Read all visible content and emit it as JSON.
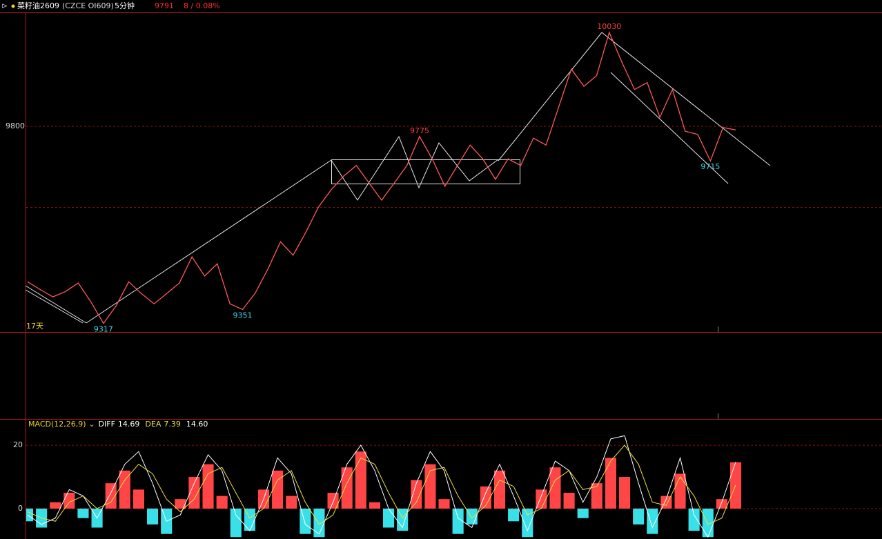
{
  "header": {
    "name": "菜籽油2609",
    "code": "(CZCE OI609)",
    "period": "5分钟",
    "price": "9791",
    "change": "8 / 0.08%"
  },
  "chart_data": [
    {
      "type": "line",
      "color": "#ff5a5a",
      "ylim": [
        9296,
        10079
      ],
      "yticks": [
        9800
      ],
      "grid": true,
      "period_label": "17天",
      "values": [
        9419,
        9400,
        9382,
        9395,
        9416,
        9370,
        9317,
        9360,
        9419,
        9390,
        9365,
        9390,
        9416,
        9480,
        9433,
        9463,
        9365,
        9351,
        9391,
        9450,
        9517,
        9484,
        9540,
        9602,
        9644,
        9678,
        9704,
        9661,
        9619,
        9661,
        9704,
        9775,
        9720,
        9653,
        9704,
        9754,
        9720,
        9670,
        9720,
        9704,
        9771,
        9754,
        9847,
        9940,
        9898,
        9924,
        10030,
        9957,
        9890,
        9907,
        9822,
        9890,
        9788,
        9780,
        9715,
        9797,
        9791
      ],
      "annotations": [
        {
          "value": 9317,
          "color": "#40d8e8",
          "place": "below"
        },
        {
          "value": 9351,
          "color": "#40d8e8",
          "place": "below"
        },
        {
          "value": 9775,
          "color": "#ff4040",
          "place": "above"
        },
        {
          "value": 10030,
          "color": "#ff4040",
          "place": "above"
        },
        {
          "value": 9715,
          "color": "#40d8e8",
          "place": "below"
        }
      ]
    },
    {
      "type": "macd",
      "title": "MACD(12,26,9)",
      "ylim": [
        -9.6,
        28.3
      ],
      "yticks": [
        0,
        20
      ],
      "grid": true,
      "up_color": "#ff4545",
      "down_color": "#3ae0e8",
      "histogram_label": "14.60",
      "histogram": [
        -4,
        -6,
        2,
        5,
        -3,
        -6,
        8,
        12,
        6,
        -5,
        -8,
        3,
        10,
        14,
        4,
        -9,
        -7,
        6,
        12,
        4,
        -8,
        -9,
        5,
        13,
        18,
        2,
        -6,
        -7,
        9,
        14,
        3,
        -8,
        -5,
        7,
        12,
        -4,
        -9,
        6,
        13,
        5,
        -3,
        8,
        16,
        10,
        -5,
        -8,
        4,
        11,
        -7,
        -9,
        3,
        14.6
      ],
      "series": [
        {
          "name": "DIFF",
          "color": "#ffffff",
          "last_label": "14.69",
          "values": [
            -2,
            -5,
            -3,
            6,
            4,
            -3,
            5,
            14,
            18,
            8,
            -4,
            -2,
            8,
            17,
            12,
            -2,
            -7,
            3,
            16,
            11,
            -5,
            -8,
            2,
            14,
            20,
            12,
            0,
            -6,
            8,
            18,
            12,
            -3,
            -6,
            5,
            14,
            4,
            -7,
            4,
            15,
            12,
            2,
            10,
            22,
            23,
            8,
            -6,
            3,
            16,
            -2,
            -9,
            2,
            14.69
          ]
        },
        {
          "name": "DEA",
          "color": "#f0e040",
          "last_label": "7.39",
          "values": [
            -1,
            -3,
            -4,
            2,
            4,
            0,
            2,
            9,
            14,
            11,
            3,
            -1,
            3,
            11,
            13,
            5,
            -3,
            0,
            9,
            12,
            2,
            -5,
            -2,
            8,
            16,
            14,
            5,
            -3,
            2,
            12,
            13,
            4,
            -3,
            1,
            9,
            7,
            -2,
            0,
            9,
            12,
            6,
            7,
            15,
            20,
            14,
            2,
            1,
            10,
            4,
            -5,
            -3,
            7.39
          ]
        }
      ]
    }
  ]
}
